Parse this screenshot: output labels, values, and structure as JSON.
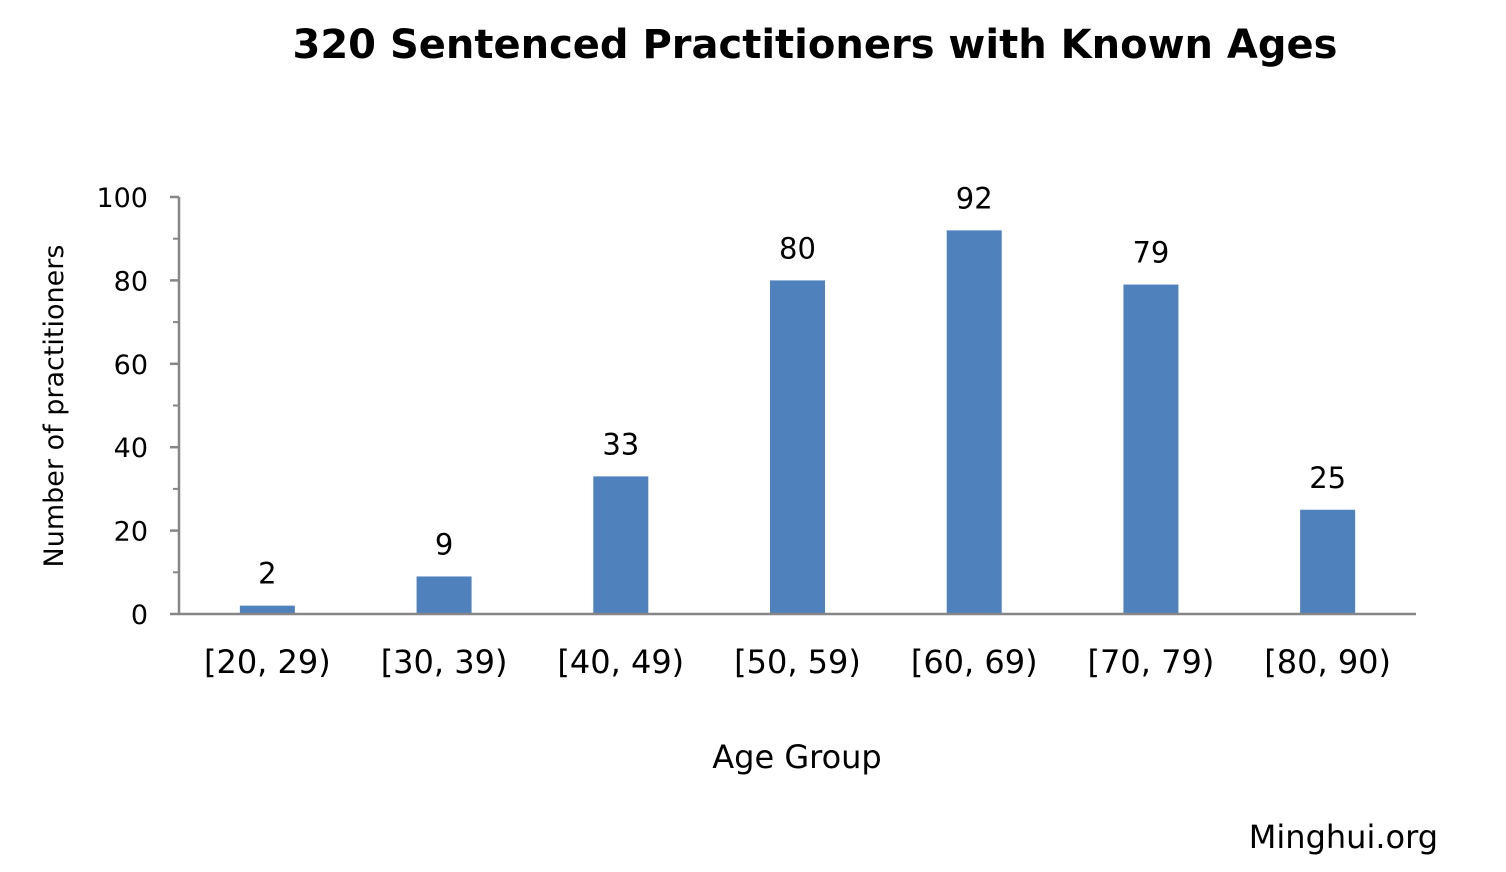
{
  "source": "Minghui.org",
  "chart_data": {
    "type": "bar",
    "title": "320 Sentenced Practitioners with Known Ages",
    "xlabel": "Age Group",
    "ylabel": "Number of practitioners",
    "categories": [
      "[20, 29)",
      "[30, 39)",
      "[40, 49)",
      "[50, 59)",
      "[60, 69)",
      "[70, 79)",
      "[80, 90)"
    ],
    "values": [
      2,
      9,
      33,
      80,
      92,
      79,
      25
    ],
    "data_labels": [
      "2",
      "9",
      "33",
      "80",
      "92",
      "79",
      "25"
    ],
    "ylim": [
      0,
      100
    ],
    "y_ticks": [
      "0",
      "20",
      "40",
      "60",
      "80",
      "100"
    ],
    "y_tick_values": [
      0,
      20,
      40,
      60,
      80,
      100
    ],
    "y_minor_tick_values": [
      10,
      30,
      50,
      70,
      90
    ],
    "grid": false,
    "legend": "none",
    "colors": {
      "bar": "#4F81BD",
      "axis": "#868686",
      "text": "#000000"
    }
  }
}
